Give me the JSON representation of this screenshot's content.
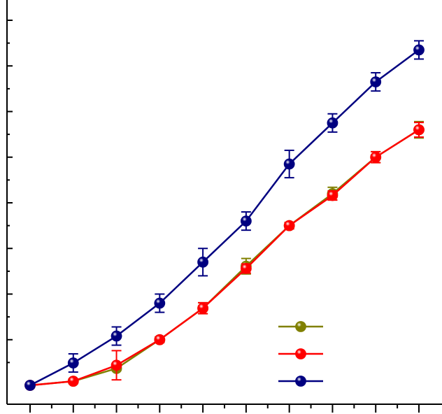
{
  "chart_data": {
    "type": "line",
    "title": "",
    "xlabel": "",
    "ylabel": "",
    "x": [
      0,
      1,
      2,
      3,
      4,
      5,
      6,
      7,
      8,
      9
    ],
    "xlim": [
      0,
      9
    ],
    "ylim": [
      0,
      8
    ],
    "grid": false,
    "legend": "lower-right",
    "series": [
      {
        "color": "#808000",
        "values": [
          0,
          0.09,
          0.37,
          1.0,
          1.69,
          2.61,
          3.5,
          4.2,
          5.0,
          5.6
        ],
        "errors": [
          0.02,
          0.05,
          0.05,
          0.06,
          0.12,
          0.17,
          0.07,
          0.14,
          0.12,
          0.18
        ]
      },
      {
        "color": "#ff0000",
        "values": [
          0,
          0.09,
          0.44,
          1.0,
          1.69,
          2.56,
          3.5,
          4.16,
          5.0,
          5.6
        ],
        "errors": [
          0.02,
          0.05,
          0.32,
          0.06,
          0.12,
          0.1,
          0.07,
          0.1,
          0.12,
          0.16
        ]
      },
      {
        "color": "#000080",
        "values": [
          0,
          0.49,
          1.08,
          1.8,
          2.7,
          3.6,
          4.85,
          5.75,
          6.65,
          7.35
        ],
        "errors": [
          0.02,
          0.2,
          0.2,
          0.2,
          0.3,
          0.2,
          0.3,
          0.2,
          0.2,
          0.2
        ]
      }
    ]
  }
}
